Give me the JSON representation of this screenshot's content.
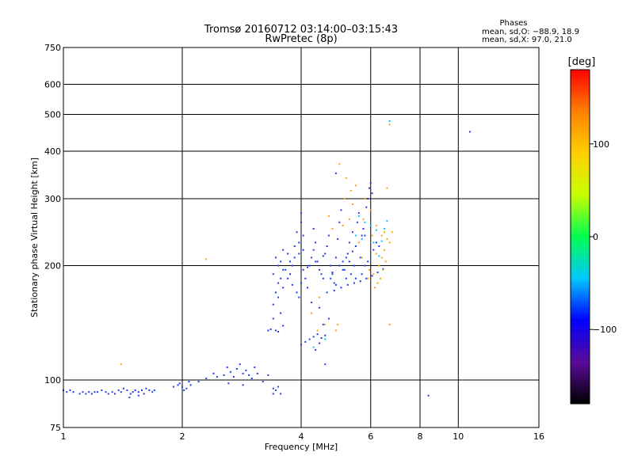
{
  "chart_data": {
    "type": "scatter",
    "title": "Tromsø 20160712 03:14:00–03:15:43",
    "subtitle": "RwPretec (8p)",
    "xlabel": "Frequency [MHz]",
    "ylabel": "Stationary phase Virtual Height [km]",
    "x_scale": "log2",
    "y_scale": "log",
    "xlim": [
      1,
      16
    ],
    "ylim": [
      75,
      750
    ],
    "x_ticks": [
      1,
      2,
      4,
      6,
      8,
      10,
      16
    ],
    "y_ticks": [
      75,
      100,
      200,
      300,
      400,
      500,
      600,
      750
    ],
    "grid": true,
    "legend": {
      "title": "Phases",
      "lines": [
        "mean, sd,O: −88.9, 18.9",
        "mean, sd,X:  97.0, 21.0"
      ]
    },
    "colorbar": {
      "label": "[deg]",
      "ticks": [
        100,
        0,
        -100
      ],
      "range": [
        -180,
        180
      ],
      "stops": [
        "#000000",
        "#5a0a9a",
        "#0000ff",
        "#00c8ff",
        "#00ff50",
        "#c8ff00",
        "#ffd000",
        "#ff8000",
        "#ff0000"
      ]
    },
    "series": [
      {
        "phase": "O",
        "color": "#1a3cf0",
        "points": [
          [
            1.0,
            94
          ],
          [
            1.02,
            93
          ],
          [
            1.04,
            94
          ],
          [
            1.06,
            93
          ],
          [
            1.1,
            92
          ],
          [
            1.12,
            93
          ],
          [
            1.14,
            92
          ],
          [
            1.16,
            93
          ],
          [
            1.18,
            92
          ],
          [
            1.2,
            93
          ],
          [
            1.22,
            93
          ],
          [
            1.25,
            94
          ],
          [
            1.28,
            93
          ],
          [
            1.3,
            92
          ],
          [
            1.33,
            93
          ],
          [
            1.35,
            92
          ],
          [
            1.38,
            94
          ],
          [
            1.4,
            93
          ],
          [
            1.42,
            95
          ],
          [
            1.45,
            94
          ],
          [
            1.48,
            92
          ],
          [
            1.5,
            93
          ],
          [
            1.52,
            94
          ],
          [
            1.55,
            93
          ],
          [
            1.58,
            94
          ],
          [
            1.6,
            92
          ],
          [
            1.62,
            95
          ],
          [
            1.65,
            94
          ],
          [
            1.68,
            93
          ],
          [
            1.7,
            94
          ],
          [
            1.47,
            90
          ],
          [
            1.55,
            91
          ],
          [
            1.9,
            96
          ],
          [
            1.95,
            97
          ],
          [
            2.0,
            96
          ],
          [
            2.05,
            95
          ],
          [
            2.1,
            97
          ],
          [
            1.97,
            98
          ],
          [
            2.02,
            94
          ],
          [
            2.08,
            99
          ],
          [
            2.2,
            99
          ],
          [
            2.3,
            101
          ],
          [
            2.4,
            104
          ],
          [
            2.45,
            102
          ],
          [
            2.55,
            103
          ],
          [
            2.6,
            108
          ],
          [
            2.65,
            105
          ],
          [
            2.7,
            102
          ],
          [
            2.75,
            107
          ],
          [
            2.8,
            110
          ],
          [
            2.85,
            104
          ],
          [
            2.9,
            106
          ],
          [
            2.95,
            103
          ],
          [
            3.0,
            101
          ],
          [
            3.1,
            104
          ],
          [
            3.2,
            99
          ],
          [
            3.3,
            103
          ],
          [
            2.62,
            98
          ],
          [
            2.85,
            97
          ],
          [
            3.05,
            108
          ],
          [
            3.4,
            95
          ],
          [
            3.45,
            94
          ],
          [
            3.5,
            96
          ],
          [
            3.55,
            92
          ],
          [
            3.4,
            92
          ],
          [
            3.45,
            135
          ],
          [
            3.3,
            135
          ],
          [
            3.5,
            134
          ],
          [
            3.35,
            136
          ],
          [
            3.6,
            139
          ],
          [
            3.4,
            145
          ],
          [
            3.55,
            150
          ],
          [
            3.4,
            158
          ],
          [
            3.5,
            165
          ],
          [
            3.45,
            170
          ],
          [
            3.6,
            175
          ],
          [
            3.5,
            180
          ],
          [
            3.55,
            185
          ],
          [
            3.4,
            190
          ],
          [
            3.6,
            195
          ],
          [
            3.5,
            200
          ],
          [
            3.55,
            205
          ],
          [
            3.45,
            210
          ],
          [
            3.6,
            220
          ],
          [
            3.7,
            215
          ],
          [
            3.8,
            200
          ],
          [
            3.75,
            190
          ],
          [
            3.7,
            185
          ],
          [
            3.8,
            178
          ],
          [
            3.9,
            170
          ],
          [
            3.85,
            225
          ],
          [
            3.95,
            230
          ],
          [
            3.9,
            245
          ],
          [
            4.0,
            260
          ],
          [
            4.0,
            275
          ],
          [
            4.05,
            240
          ],
          [
            4.05,
            195
          ],
          [
            4.1,
            185
          ],
          [
            4.0,
            180
          ],
          [
            4.15,
            175
          ],
          [
            4.2,
            200
          ],
          [
            4.25,
            210
          ],
          [
            4.3,
            220
          ],
          [
            4.35,
            230
          ],
          [
            4.3,
            250
          ],
          [
            4.4,
            205
          ],
          [
            4.45,
            195
          ],
          [
            4.5,
            190
          ],
          [
            4.55,
            185
          ],
          [
            4.6,
            215
          ],
          [
            4.65,
            225
          ],
          [
            4.7,
            240
          ],
          [
            4.75,
            200
          ],
          [
            4.8,
            190
          ],
          [
            4.85,
            180
          ],
          [
            4.9,
            210
          ],
          [
            4.95,
            235
          ],
          [
            5.0,
            260
          ],
          [
            5.05,
            280
          ],
          [
            5.1,
            205
          ],
          [
            5.15,
            195
          ],
          [
            5.2,
            185
          ],
          [
            5.25,
            215
          ],
          [
            5.3,
            230
          ],
          [
            5.35,
            190
          ],
          [
            5.4,
            245
          ],
          [
            5.45,
            200
          ],
          [
            5.5,
            185
          ],
          [
            5.55,
            260
          ],
          [
            5.6,
            275
          ],
          [
            5.65,
            210
          ],
          [
            5.7,
            190
          ],
          [
            5.75,
            250
          ],
          [
            5.8,
            240
          ],
          [
            5.85,
            285
          ],
          [
            5.9,
            300
          ],
          [
            5.95,
            320
          ],
          [
            6.0,
            330
          ],
          [
            6.05,
            310
          ],
          [
            6.1,
            220
          ],
          [
            4.3,
            130
          ],
          [
            4.2,
            128
          ],
          [
            4.4,
            132
          ],
          [
            4.1,
            126
          ],
          [
            4.5,
            129
          ],
          [
            4.6,
            131
          ],
          [
            4.0,
            124
          ],
          [
            4.35,
            120
          ],
          [
            4.45,
            125
          ],
          [
            4.55,
            140
          ],
          [
            4.7,
            145
          ],
          [
            4.8,
            192
          ],
          [
            4.75,
            185
          ],
          [
            4.9,
            178
          ],
          [
            5.0,
            200
          ],
          [
            5.1,
            195
          ],
          [
            5.2,
            210
          ],
          [
            5.3,
            205
          ],
          [
            5.4,
            218
          ],
          [
            5.5,
            225
          ],
          [
            6.2,
            230
          ],
          [
            6.3,
            225
          ],
          [
            5.9,
            205
          ],
          [
            5.8,
            200
          ],
          [
            5.7,
            240
          ],
          [
            3.65,
            195
          ],
          [
            3.75,
            205
          ],
          [
            3.85,
            210
          ],
          [
            3.95,
            215
          ],
          [
            4.05,
            220
          ],
          [
            8.4,
            91
          ],
          [
            10.7,
            450
          ],
          [
            4.6,
            110
          ],
          [
            4.9,
            350
          ],
          [
            3.95,
            165
          ],
          [
            4.25,
            160
          ],
          [
            4.45,
            155
          ],
          [
            4.65,
            170
          ],
          [
            4.85,
            172
          ],
          [
            5.05,
            175
          ],
          [
            5.25,
            178
          ],
          [
            5.45,
            180
          ],
          [
            5.65,
            182
          ],
          [
            5.85,
            185
          ],
          [
            6.05,
            188
          ],
          [
            6.25,
            192
          ],
          [
            6.45,
            196
          ],
          [
            4.15,
            198
          ],
          [
            4.35,
            205
          ],
          [
            4.55,
            212
          ]
        ]
      },
      {
        "phase": "X",
        "color": "#ffa500",
        "points": [
          [
            1.4,
            110
          ],
          [
            2.3,
            208
          ],
          [
            5.0,
            370
          ],
          [
            5.2,
            340
          ],
          [
            5.5,
            325
          ],
          [
            5.8,
            300
          ],
          [
            6.0,
            280
          ],
          [
            6.2,
            255
          ],
          [
            6.4,
            240
          ],
          [
            6.6,
            235
          ],
          [
            6.8,
            245
          ],
          [
            6.5,
            220
          ],
          [
            6.3,
            200
          ],
          [
            6.1,
            190
          ],
          [
            5.9,
            185
          ],
          [
            6.6,
            320
          ],
          [
            6.7,
            140
          ],
          [
            4.9,
            135
          ],
          [
            4.95,
            140
          ],
          [
            4.6,
            140
          ],
          [
            4.4,
            135
          ],
          [
            5.1,
            255
          ],
          [
            5.3,
            265
          ],
          [
            5.6,
            230
          ],
          [
            5.7,
            210
          ],
          [
            6.15,
            175
          ],
          [
            6.25,
            180
          ],
          [
            6.35,
            185
          ],
          [
            6.45,
            195
          ],
          [
            6.55,
            205
          ],
          [
            4.8,
            250
          ],
          [
            4.7,
            270
          ],
          [
            5.4,
            290
          ],
          [
            5.75,
            265
          ],
          [
            6.05,
            240
          ],
          [
            6.2,
            215
          ],
          [
            6.4,
            210
          ],
          [
            6.5,
            245
          ],
          [
            6.7,
            230
          ],
          [
            5.95,
            195
          ],
          [
            6.7,
            470
          ],
          [
            5.15,
            300
          ],
          [
            5.35,
            315
          ],
          [
            4.45,
            165
          ],
          [
            4.25,
            150
          ]
        ]
      },
      {
        "phase": "mixed",
        "color": "#00c8ff",
        "points": [
          [
            5.6,
            270
          ],
          [
            5.8,
            260
          ],
          [
            6.0,
            255
          ],
          [
            6.2,
            248
          ],
          [
            6.4,
            232
          ],
          [
            6.6,
            262
          ],
          [
            6.3,
            212
          ],
          [
            5.5,
            240
          ],
          [
            5.7,
            235
          ],
          [
            6.1,
            230
          ],
          [
            4.6,
            128
          ],
          [
            4.3,
            122
          ],
          [
            6.7,
            480
          ],
          [
            6.5,
            250
          ]
        ]
      }
    ]
  }
}
